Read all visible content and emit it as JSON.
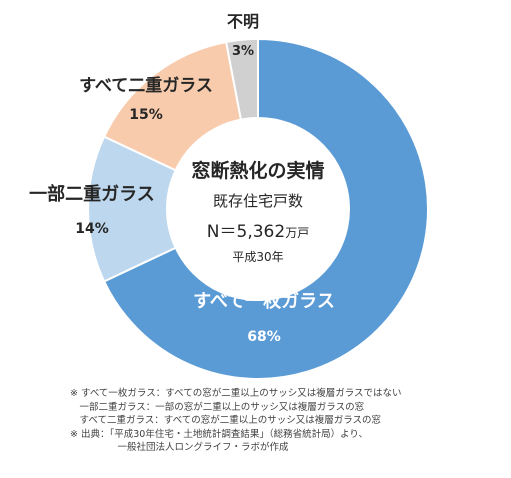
{
  "chart_data": {
    "type": "donut",
    "center": {
      "title": "窓断熱化の実情",
      "subtitle": "既存住宅戸数",
      "total_prefix": "N＝5,362",
      "total_unit": "万戸",
      "year": "平成30年"
    },
    "slices": [
      {
        "label": "すべて一枚ガラス",
        "value": 68,
        "value_label": "68%",
        "color": "#5b9bd5",
        "label_color": "#ffffff"
      },
      {
        "label": "一部二重ガラス",
        "value": 14,
        "value_label": "14%",
        "color": "#bdd7ee",
        "label_color": "#262626"
      },
      {
        "label": "すべて二重ガラス",
        "value": 15,
        "value_label": "15%",
        "color": "#f8cbad",
        "label_color": "#262626"
      },
      {
        "label": "不明",
        "value": 3,
        "value_label": "3%",
        "color": "#d0d0d0",
        "label_color": "#262626"
      }
    ]
  },
  "notes": [
    "※ すべて一枚ガラス：すべての窓が二重以上のサッシ又は複層ガラスではない",
    "　一部二重ガラス：一部の窓が二重以上のサッシ又は複層ガラスの窓",
    "　すべて二重ガラス：すべての窓が二重以上のサッシ又は複層ガラスの窓",
    "※ 出典：「平成30年住宅・土地統計調査結果」（総務省統計局）より、",
    "　　　　　一般社団法人ロングライフ・ラボが作成"
  ]
}
